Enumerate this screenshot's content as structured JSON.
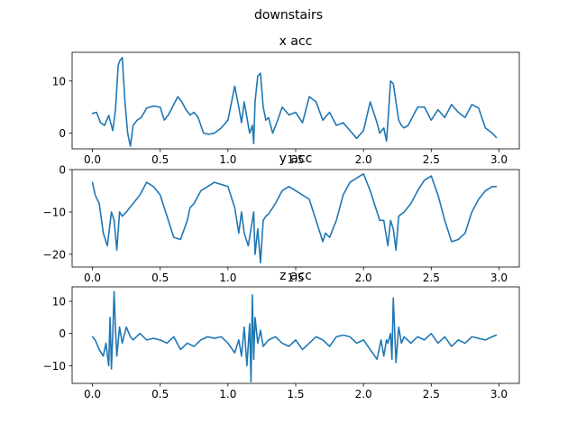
{
  "chart_data": {
    "title": "downstairs",
    "line_color": "#1f77b4",
    "charts": [
      {
        "type": "line",
        "title": "x acc",
        "xlim": [
          -0.15,
          3.15
        ],
        "ylim": [
          -3,
          15.5
        ],
        "xticks": [
          0.0,
          0.5,
          1.0,
          1.5,
          2.0,
          2.5,
          3.0
        ],
        "xtick_labels": [
          "0.0",
          "0.5",
          "1.0",
          "1.5",
          "2.0",
          "2.5",
          "3.0"
        ],
        "yticks": [
          0,
          10
        ],
        "ytick_labels": [
          "0",
          "10"
        ],
        "x": [
          0.0,
          0.03,
          0.06,
          0.09,
          0.12,
          0.15,
          0.17,
          0.19,
          0.2,
          0.22,
          0.24,
          0.26,
          0.28,
          0.3,
          0.33,
          0.36,
          0.4,
          0.45,
          0.5,
          0.53,
          0.56,
          0.6,
          0.63,
          0.66,
          0.69,
          0.72,
          0.75,
          0.78,
          0.82,
          0.86,
          0.9,
          0.95,
          1.0,
          1.05,
          1.08,
          1.1,
          1.12,
          1.14,
          1.16,
          1.18,
          1.19,
          1.2,
          1.22,
          1.24,
          1.26,
          1.28,
          1.3,
          1.33,
          1.36,
          1.4,
          1.45,
          1.5,
          1.55,
          1.6,
          1.65,
          1.7,
          1.75,
          1.8,
          1.85,
          1.9,
          1.95,
          2.0,
          2.05,
          2.1,
          2.12,
          2.15,
          2.17,
          2.18,
          2.2,
          2.22,
          2.24,
          2.26,
          2.28,
          2.3,
          2.33,
          2.36,
          2.4,
          2.45,
          2.5,
          2.55,
          2.6,
          2.65,
          2.7,
          2.75,
          2.8,
          2.85,
          2.9,
          2.95,
          2.98
        ],
        "values": [
          3.8,
          4.0,
          2.0,
          1.5,
          3.4,
          0.5,
          4.5,
          13.0,
          13.8,
          14.5,
          6.0,
          0.0,
          -2.5,
          1.5,
          2.5,
          3.0,
          4.8,
          5.2,
          5.0,
          2.5,
          3.5,
          5.5,
          7.0,
          6.0,
          4.5,
          3.5,
          4.0,
          3.0,
          0.0,
          -0.2,
          0.0,
          1.0,
          2.5,
          9.0,
          5.0,
          2.0,
          6.0,
          3.0,
          0.0,
          1.5,
          -2.0,
          6.0,
          11.0,
          11.5,
          5.0,
          2.5,
          3.0,
          0.0,
          2.0,
          5.0,
          3.5,
          4.0,
          2.0,
          7.0,
          6.0,
          2.5,
          4.0,
          1.5,
          2.0,
          0.5,
          -1.0,
          0.5,
          6.0,
          2.0,
          0.0,
          1.0,
          -1.5,
          2.0,
          10.0,
          9.5,
          6.0,
          2.5,
          1.5,
          1.0,
          1.5,
          3.0,
          5.0,
          5.0,
          2.5,
          4.5,
          3.0,
          5.5,
          4.0,
          3.0,
          5.5,
          4.8,
          1.0,
          0.0,
          -0.8
        ]
      },
      {
        "type": "line",
        "title": "y acc",
        "xlim": [
          -0.15,
          3.15
        ],
        "ylim": [
          -23,
          0
        ],
        "xticks": [
          0.0,
          0.5,
          1.0,
          1.5,
          2.0,
          2.5,
          3.0
        ],
        "xtick_labels": [
          "0.0",
          "0.5",
          "1.0",
          "1.5",
          "2.0",
          "2.5",
          "3.0"
        ],
        "yticks": [
          0,
          -10,
          -20
        ],
        "ytick_labels": [
          "0",
          "−10",
          "−20"
        ],
        "x": [
          0.0,
          0.02,
          0.05,
          0.08,
          0.11,
          0.14,
          0.16,
          0.18,
          0.2,
          0.22,
          0.25,
          0.3,
          0.35,
          0.4,
          0.45,
          0.5,
          0.55,
          0.6,
          0.65,
          0.7,
          0.72,
          0.75,
          0.8,
          0.85,
          0.9,
          0.95,
          1.0,
          1.05,
          1.08,
          1.1,
          1.12,
          1.15,
          1.18,
          1.19,
          1.2,
          1.22,
          1.24,
          1.26,
          1.28,
          1.3,
          1.35,
          1.4,
          1.45,
          1.5,
          1.55,
          1.6,
          1.65,
          1.7,
          1.72,
          1.75,
          1.8,
          1.85,
          1.9,
          1.95,
          2.0,
          2.05,
          2.1,
          2.12,
          2.15,
          2.18,
          2.2,
          2.22,
          2.24,
          2.26,
          2.3,
          2.35,
          2.4,
          2.45,
          2.5,
          2.55,
          2.6,
          2.65,
          2.7,
          2.75,
          2.8,
          2.85,
          2.9,
          2.95,
          2.98
        ],
        "values": [
          -3.0,
          -6.0,
          -8.0,
          -15.0,
          -18.0,
          -10.0,
          -12.0,
          -19.0,
          -10.0,
          -11.0,
          -10.0,
          -8.0,
          -6.0,
          -3.0,
          -4.0,
          -6.0,
          -11.0,
          -16.0,
          -16.5,
          -12.0,
          -9.0,
          -8.0,
          -5.0,
          -4.0,
          -3.0,
          -3.5,
          -4.0,
          -9.0,
          -15.0,
          -10.0,
          -15.0,
          -18.0,
          -12.0,
          -10.0,
          -20.0,
          -14.0,
          -22.0,
          -12.0,
          -11.0,
          -10.5,
          -8.0,
          -5.0,
          -4.0,
          -5.0,
          -6.0,
          -7.0,
          -12.0,
          -17.0,
          -15.0,
          -16.0,
          -12.0,
          -6.0,
          -3.0,
          -2.0,
          -1.0,
          -5.0,
          -10.0,
          -12.0,
          -12.0,
          -18.0,
          -12.0,
          -14.0,
          -19.0,
          -11.0,
          -10.0,
          -8.0,
          -5.0,
          -2.5,
          -1.5,
          -6.0,
          -12.0,
          -17.0,
          -16.5,
          -15.0,
          -10.0,
          -7.0,
          -5.0,
          -4.0,
          -4.0
        ]
      },
      {
        "type": "line",
        "title": "z acc",
        "xlim": [
          -0.15,
          3.15
        ],
        "ylim": [
          -15.5,
          14.5
        ],
        "xticks": [
          0.0,
          0.5,
          1.0,
          1.5,
          2.0,
          2.5,
          3.0
        ],
        "xtick_labels": [
          "0.0",
          "0.5",
          "1.0",
          "1.5",
          "2.0",
          "2.5",
          "3.0"
        ],
        "yticks": [
          10,
          0,
          -10
        ],
        "ytick_labels": [
          "10",
          "0",
          "−10"
        ],
        "x": [
          0.0,
          0.02,
          0.05,
          0.08,
          0.1,
          0.12,
          0.13,
          0.14,
          0.15,
          0.16,
          0.17,
          0.18,
          0.2,
          0.22,
          0.25,
          0.28,
          0.3,
          0.35,
          0.4,
          0.45,
          0.5,
          0.55,
          0.6,
          0.65,
          0.7,
          0.75,
          0.8,
          0.85,
          0.9,
          0.95,
          1.0,
          1.05,
          1.08,
          1.1,
          1.12,
          1.14,
          1.16,
          1.17,
          1.18,
          1.19,
          1.2,
          1.22,
          1.24,
          1.26,
          1.28,
          1.3,
          1.35,
          1.4,
          1.45,
          1.5,
          1.55,
          1.6,
          1.65,
          1.7,
          1.75,
          1.8,
          1.85,
          1.9,
          1.95,
          2.0,
          2.05,
          2.1,
          2.13,
          2.15,
          2.17,
          2.18,
          2.2,
          2.21,
          2.22,
          2.24,
          2.26,
          2.28,
          2.3,
          2.35,
          2.4,
          2.45,
          2.5,
          2.55,
          2.6,
          2.65,
          2.7,
          2.75,
          2.8,
          2.85,
          2.9,
          2.95,
          2.98
        ],
        "values": [
          -1.0,
          -2.0,
          -5.0,
          -7.0,
          -3.0,
          -10.0,
          5.0,
          -11.0,
          0.0,
          13.0,
          1.0,
          -7.0,
          2.0,
          -3.0,
          2.0,
          -1.0,
          -2.0,
          0.0,
          -2.0,
          -1.5,
          -2.0,
          -3.0,
          -1.0,
          -5.0,
          -3.0,
          -4.0,
          -2.0,
          -1.0,
          -1.5,
          -1.0,
          -3.0,
          -6.0,
          -2.0,
          -7.0,
          2.0,
          -10.0,
          3.0,
          -15.0,
          12.0,
          -8.0,
          5.0,
          -3.0,
          1.0,
          -4.0,
          -3.0,
          -2.0,
          -1.0,
          -3.0,
          -4.0,
          -2.0,
          -5.0,
          -3.0,
          -1.0,
          -2.0,
          -4.0,
          -1.0,
          -0.5,
          -1.0,
          -3.0,
          -2.0,
          -5.0,
          -8.0,
          -2.0,
          -7.0,
          -2.0,
          -3.0,
          0.0,
          -8.0,
          11.0,
          -9.0,
          2.0,
          -3.0,
          -1.0,
          -3.0,
          -1.0,
          -2.0,
          0.0,
          -3.0,
          -1.0,
          -4.0,
          -2.0,
          -3.0,
          -1.0,
          -1.5,
          -2.0,
          -1.0,
          -0.5
        ]
      }
    ]
  }
}
